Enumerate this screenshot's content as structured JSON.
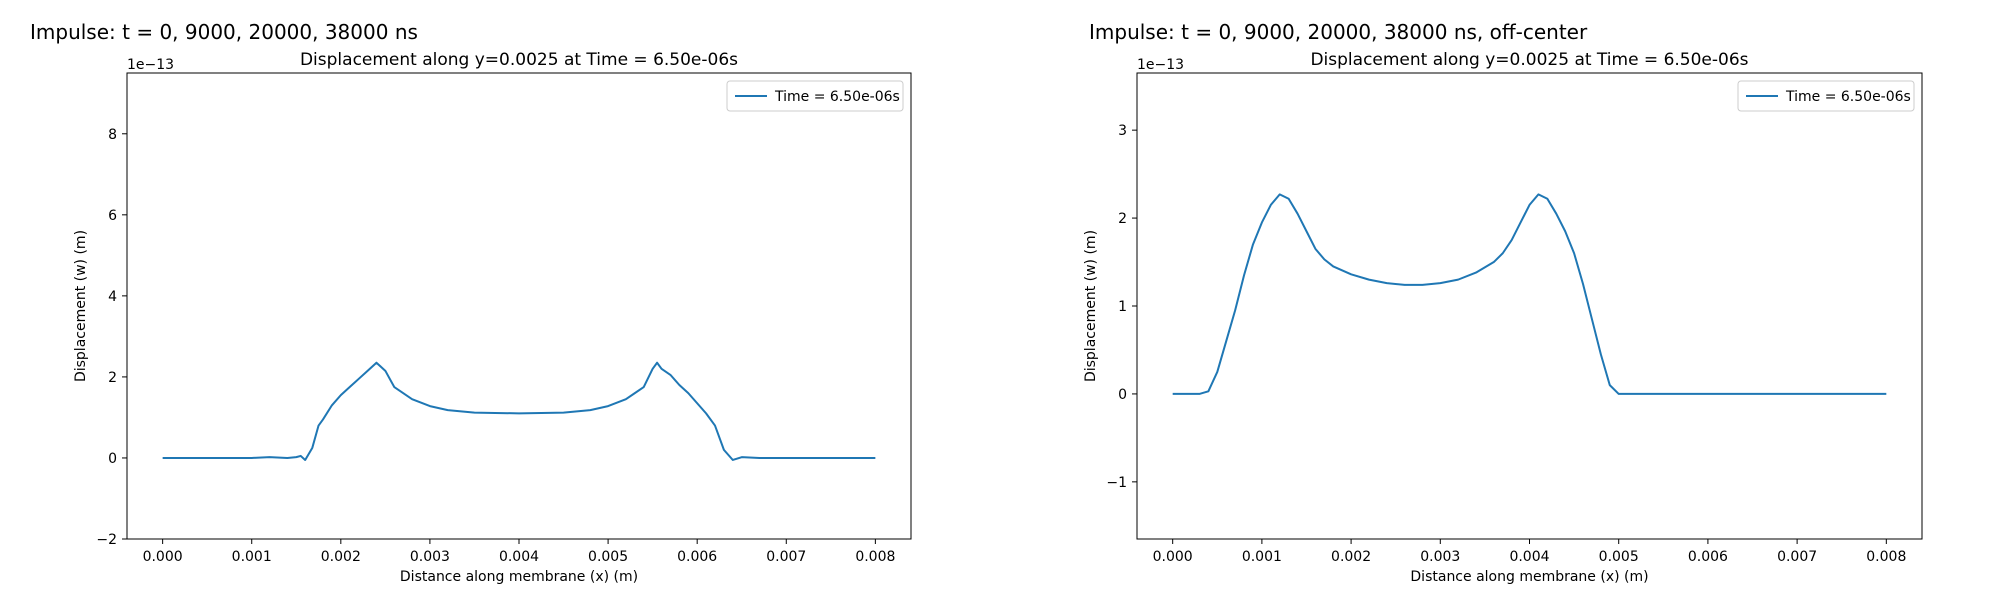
{
  "panels": [
    {
      "heading": "Impulse: t = 0, 9000, 20000, 38000 ns"
    },
    {
      "heading": "Impulse: t = 0, 9000, 20000, 38000 ns, off-center"
    }
  ],
  "chart_data": [
    {
      "type": "line",
      "title": "Displacement along y=0.0025 at Time = 6.50e-06s",
      "xlabel": "Distance along membrane (x) (m)",
      "ylabel": "Displacement (w) (m)",
      "y_offset_label": "1e−13",
      "xlim": [
        -0.0004,
        0.0084
      ],
      "ylim": [
        -2.0,
        9.5
      ],
      "xticks": [
        0.0,
        0.001,
        0.002,
        0.003,
        0.004,
        0.005,
        0.006,
        0.007,
        0.008
      ],
      "xtick_labels": [
        "0.000",
        "0.001",
        "0.002",
        "0.003",
        "0.004",
        "0.005",
        "0.006",
        "0.007",
        "0.008"
      ],
      "yticks": [
        -2,
        0,
        2,
        4,
        6,
        8
      ],
      "ytick_labels": [
        "−2",
        "0",
        "2",
        "4",
        "6",
        "8"
      ],
      "grid": false,
      "legend": "top-right",
      "series": [
        {
          "name": "Time = 6.50e-06s",
          "color": "#1f77b4",
          "x": [
            0.0,
            0.001,
            0.0012,
            0.0014,
            0.0015,
            0.00155,
            0.0016,
            0.00168,
            0.00175,
            0.0018,
            0.0019,
            0.002,
            0.0021,
            0.0022,
            0.0023,
            0.0024,
            0.0025,
            0.0026,
            0.0028,
            0.003,
            0.0032,
            0.0035,
            0.004,
            0.0045,
            0.0048,
            0.005,
            0.0052,
            0.0053,
            0.0054,
            0.0055,
            0.00555,
            0.0056,
            0.0057,
            0.0058,
            0.0059,
            0.006,
            0.0061,
            0.0062,
            0.0063,
            0.0064,
            0.0065,
            0.0067,
            0.007,
            0.008
          ],
          "y": [
            0.0,
            0.0,
            0.02,
            0.0,
            0.02,
            0.05,
            -0.05,
            0.25,
            0.8,
            0.95,
            1.3,
            1.55,
            1.75,
            1.95,
            2.15,
            2.35,
            2.15,
            1.75,
            1.45,
            1.28,
            1.18,
            1.12,
            1.1,
            1.12,
            1.18,
            1.28,
            1.45,
            1.6,
            1.75,
            2.2,
            2.35,
            2.2,
            2.05,
            1.8,
            1.6,
            1.35,
            1.1,
            0.8,
            0.2,
            -0.05,
            0.02,
            0.0,
            0.0,
            0.0
          ]
        }
      ]
    },
    {
      "type": "line",
      "title": "Displacement along y=0.0025 at Time = 6.50e-06s",
      "xlabel": "Distance along membrane (x) (m)",
      "ylabel": "Displacement (w) (m)",
      "y_offset_label": "1e−13",
      "xlim": [
        -0.0004,
        0.0084
      ],
      "ylim": [
        -1.65,
        3.65
      ],
      "xticks": [
        0.0,
        0.001,
        0.002,
        0.003,
        0.004,
        0.005,
        0.006,
        0.007,
        0.008
      ],
      "xtick_labels": [
        "0.000",
        "0.001",
        "0.002",
        "0.003",
        "0.004",
        "0.005",
        "0.006",
        "0.007",
        "0.008"
      ],
      "yticks": [
        -1,
        0,
        1,
        2,
        3
      ],
      "ytick_labels": [
        "−1",
        "0",
        "1",
        "2",
        "3"
      ],
      "grid": false,
      "legend": "top-right",
      "series": [
        {
          "name": "Time = 6.50e-06s",
          "color": "#1f77b4",
          "x": [
            0.0,
            0.0003,
            0.0004,
            0.0005,
            0.0006,
            0.0007,
            0.0008,
            0.0009,
            0.001,
            0.0011,
            0.0012,
            0.0013,
            0.0014,
            0.0015,
            0.0016,
            0.0017,
            0.0018,
            0.002,
            0.0022,
            0.0024,
            0.0026,
            0.0028,
            0.003,
            0.0032,
            0.0034,
            0.0036,
            0.0037,
            0.0038,
            0.0039,
            0.004,
            0.0041,
            0.0042,
            0.0043,
            0.0044,
            0.0045,
            0.0046,
            0.0047,
            0.0048,
            0.0049,
            0.005,
            0.0055,
            0.006,
            0.007,
            0.008
          ],
          "y": [
            0.0,
            0.0,
            0.03,
            0.25,
            0.6,
            0.95,
            1.35,
            1.7,
            1.95,
            2.15,
            2.27,
            2.22,
            2.05,
            1.85,
            1.65,
            1.53,
            1.45,
            1.36,
            1.3,
            1.26,
            1.24,
            1.24,
            1.26,
            1.3,
            1.38,
            1.5,
            1.6,
            1.75,
            1.95,
            2.15,
            2.27,
            2.22,
            2.05,
            1.85,
            1.6,
            1.25,
            0.85,
            0.45,
            0.1,
            0.0,
            0.0,
            0.0,
            0.0,
            0.0
          ]
        }
      ]
    }
  ]
}
